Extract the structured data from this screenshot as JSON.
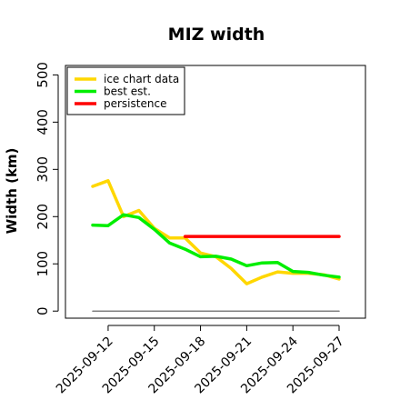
{
  "chart_data": {
    "type": "line",
    "title": "MIZ width",
    "xlabel": "",
    "ylabel": "Width (km)",
    "ylim": [
      -15,
      520
    ],
    "yticks": [
      0,
      100,
      200,
      300,
      400,
      500
    ],
    "x": [
      "2025-09-11",
      "2025-09-12",
      "2025-09-13",
      "2025-09-14",
      "2025-09-15",
      "2025-09-16",
      "2025-09-17",
      "2025-09-18",
      "2025-09-19",
      "2025-09-20",
      "2025-09-21",
      "2025-09-22",
      "2025-09-23",
      "2025-09-24",
      "2025-09-25",
      "2025-09-26",
      "2025-09-27"
    ],
    "xticks": [
      "2025-09-12",
      "2025-09-15",
      "2025-09-18",
      "2025-09-21",
      "2025-09-24",
      "2025-09-27"
    ],
    "series": [
      {
        "name": "ice chart data",
        "color": "#FFD700",
        "values": [
          264,
          276,
          200,
          213,
          175,
          155,
          155,
          123,
          115,
          90,
          58,
          72,
          83,
          80,
          80,
          77,
          68
        ]
      },
      {
        "name": "best est.",
        "color": "#00EE00",
        "values": [
          182,
          181,
          204,
          198,
          173,
          144,
          131,
          115,
          116,
          110,
          96,
          102,
          103,
          84,
          82,
          76,
          72
        ]
      },
      {
        "name": "persistence",
        "color": "#FF0000",
        "values": [
          null,
          null,
          null,
          null,
          null,
          null,
          158,
          158,
          158,
          158,
          158,
          158,
          158,
          158,
          158,
          158,
          158
        ]
      },
      {
        "color": "#808080",
        "values": [
          0,
          0,
          0,
          0,
          0,
          0,
          0,
          0,
          0,
          0,
          0,
          0,
          0,
          0,
          0,
          0,
          0
        ]
      }
    ],
    "grid": false,
    "legend": "top-left"
  }
}
